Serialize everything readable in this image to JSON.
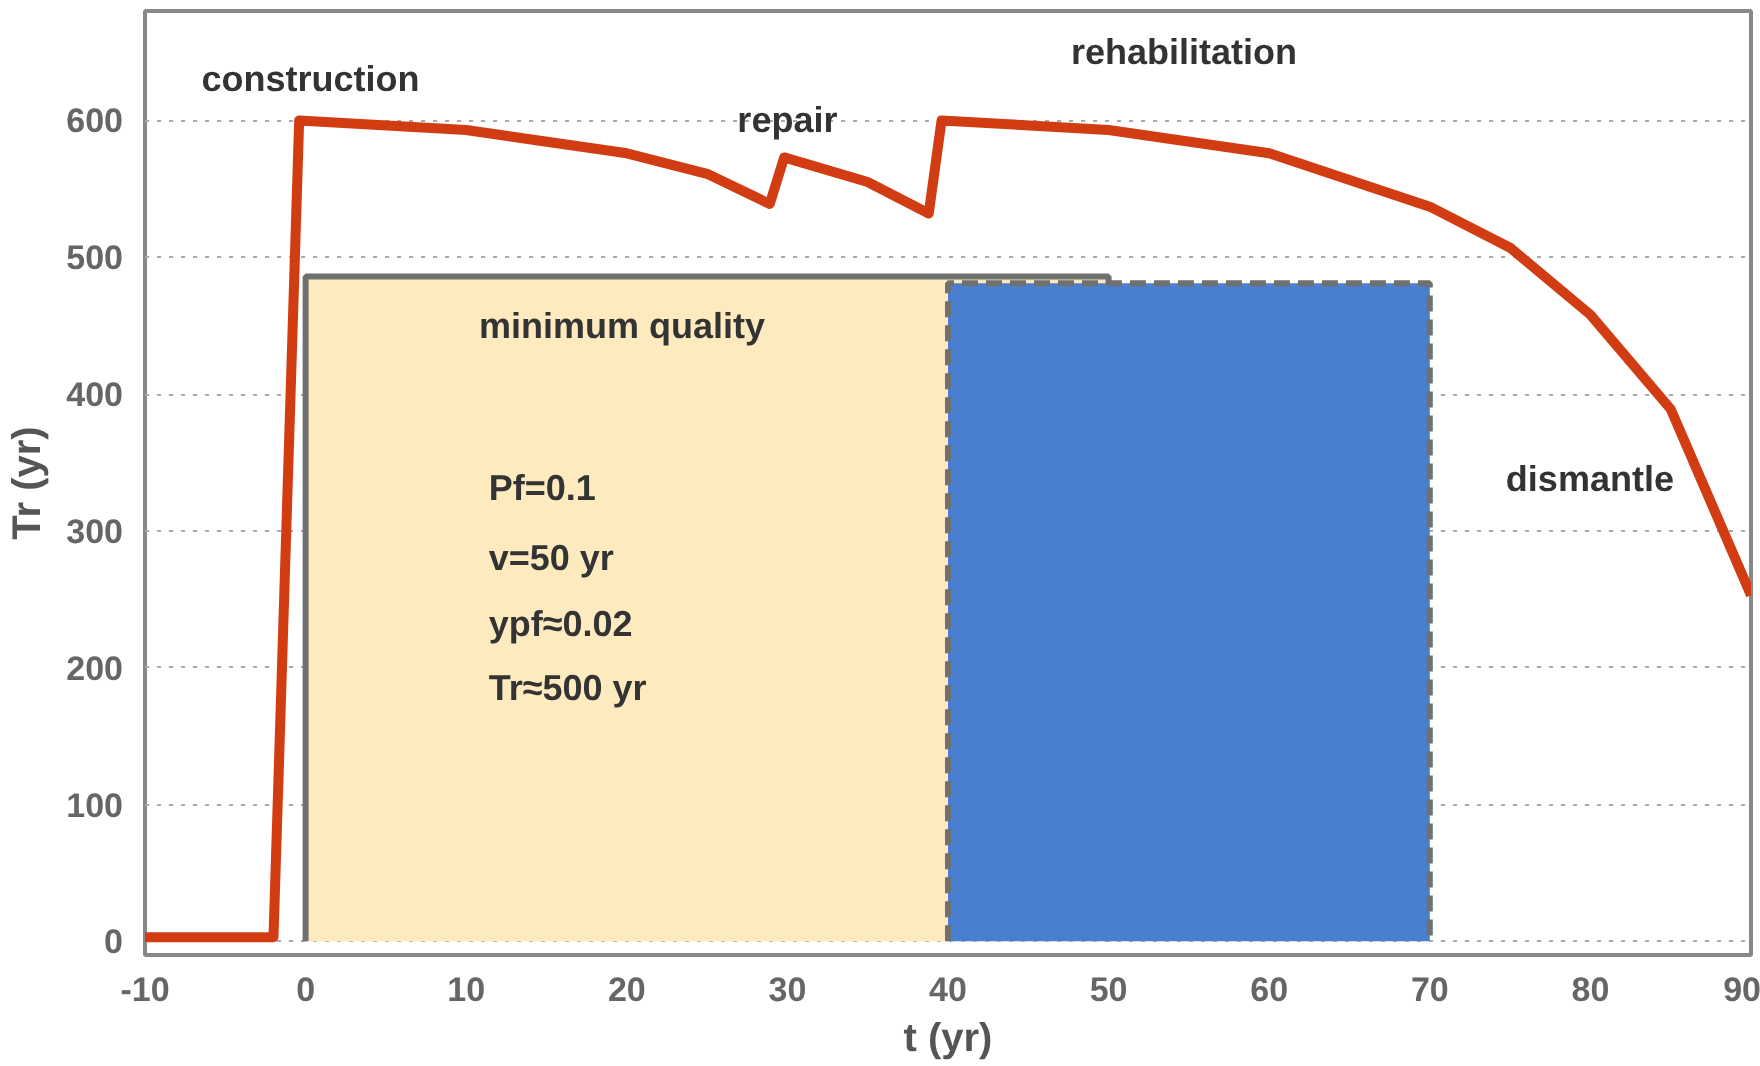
{
  "chart_data": {
    "type": "line",
    "xlabel": "t (yr)",
    "ylabel": "Tr (yr)",
    "xlim": [
      -10,
      90
    ],
    "ylim": [
      -10,
      680
    ],
    "xticks": [
      -10,
      0,
      10,
      20,
      30,
      40,
      50,
      60,
      70,
      80,
      90
    ],
    "yticks": [
      0,
      100,
      200,
      300,
      400,
      500,
      600
    ],
    "grid": "y",
    "series": [
      {
        "type": "area",
        "color": "#fdeabf",
        "line_style": "solid",
        "x": [
          0,
          50
        ],
        "values": [
          486,
          486
        ]
      },
      {
        "type": "area",
        "color": "#4a7fcf",
        "line_style": "dashed",
        "x": [
          40,
          70
        ],
        "values": [
          481,
          481
        ]
      },
      {
        "color": "#d23c12",
        "line_style": "solid",
        "x": [
          -10,
          -2,
          -0.4,
          10,
          20,
          25,
          28.9,
          29.8,
          35,
          38.8,
          39.6,
          50,
          60,
          70,
          75,
          80,
          85,
          90
        ],
        "values": [
          3,
          3,
          600,
          593,
          576,
          561,
          539,
          573,
          555,
          532,
          600,
          593,
          576,
          537,
          507,
          458,
          389,
          253
        ]
      }
    ],
    "annotations": [
      "construction",
      "repair",
      "rehabilitation",
      "dismantle",
      "minimum quality",
      "Pf=0.1",
      "v=50 yr",
      "ypf≈0.02",
      "Tr≈500 yr"
    ]
  }
}
